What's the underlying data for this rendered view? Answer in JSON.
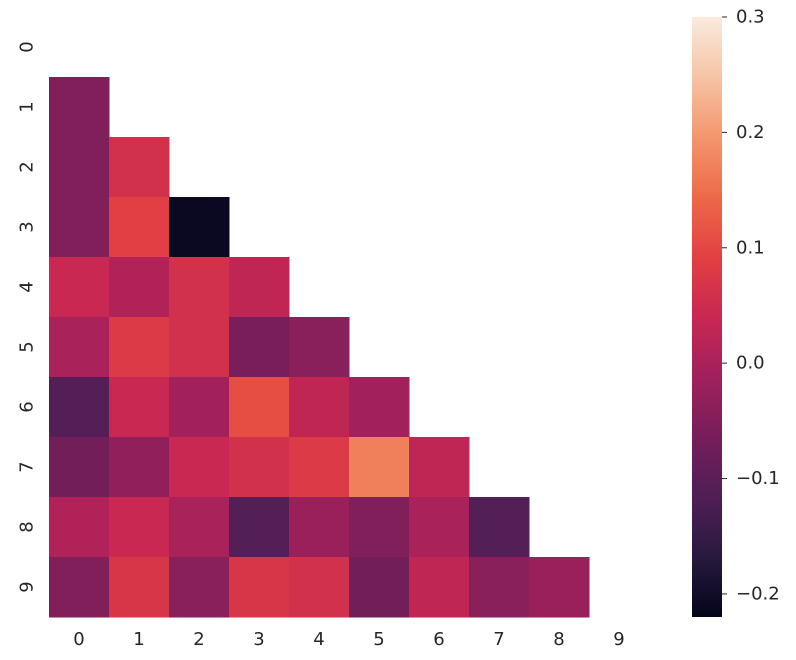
{
  "chart_data": {
    "type": "heatmap",
    "mask": "upper-triangle-including-diagonal",
    "x_categories": [
      "0",
      "1",
      "2",
      "3",
      "4",
      "5",
      "6",
      "7",
      "8",
      "9"
    ],
    "y_categories": [
      "0",
      "1",
      "2",
      "3",
      "4",
      "5",
      "6",
      "7",
      "8",
      "9"
    ],
    "colormap": "rocket",
    "vmin": -0.22,
    "vmax": 0.3,
    "colorbar_ticks": [
      "0.3",
      "0.2",
      "0.1",
      "0.0",
      "−0.1",
      "−0.2"
    ],
    "colorbar_tick_values": [
      0.3,
      0.2,
      0.1,
      0.0,
      -0.1,
      -0.2
    ],
    "values": [
      [
        null,
        null,
        null,
        null,
        null,
        null,
        null,
        null,
        null,
        null
      ],
      [
        -0.05,
        null,
        null,
        null,
        null,
        null,
        null,
        null,
        null,
        null
      ],
      [
        -0.05,
        0.06,
        null,
        null,
        null,
        null,
        null,
        null,
        null,
        null
      ],
      [
        -0.05,
        0.09,
        -0.21,
        null,
        null,
        null,
        null,
        null,
        null,
        null
      ],
      [
        0.04,
        0.01,
        0.06,
        0.03,
        null,
        null,
        null,
        null,
        null,
        null
      ],
      [
        0.0,
        0.08,
        0.06,
        -0.06,
        -0.04,
        null,
        null,
        null,
        null,
        null
      ],
      [
        -0.11,
        0.04,
        -0.01,
        0.11,
        0.03,
        -0.01,
        null,
        null,
        null,
        null
      ],
      [
        -0.07,
        -0.03,
        0.04,
        0.06,
        0.08,
        0.17,
        0.03,
        null,
        null,
        null
      ],
      [
        0.01,
        0.04,
        0.0,
        -0.11,
        -0.02,
        -0.05,
        0.0,
        -0.11,
        null,
        null
      ],
      [
        -0.05,
        0.07,
        -0.04,
        0.07,
        0.06,
        -0.07,
        0.03,
        -0.04,
        -0.02,
        null
      ]
    ]
  }
}
